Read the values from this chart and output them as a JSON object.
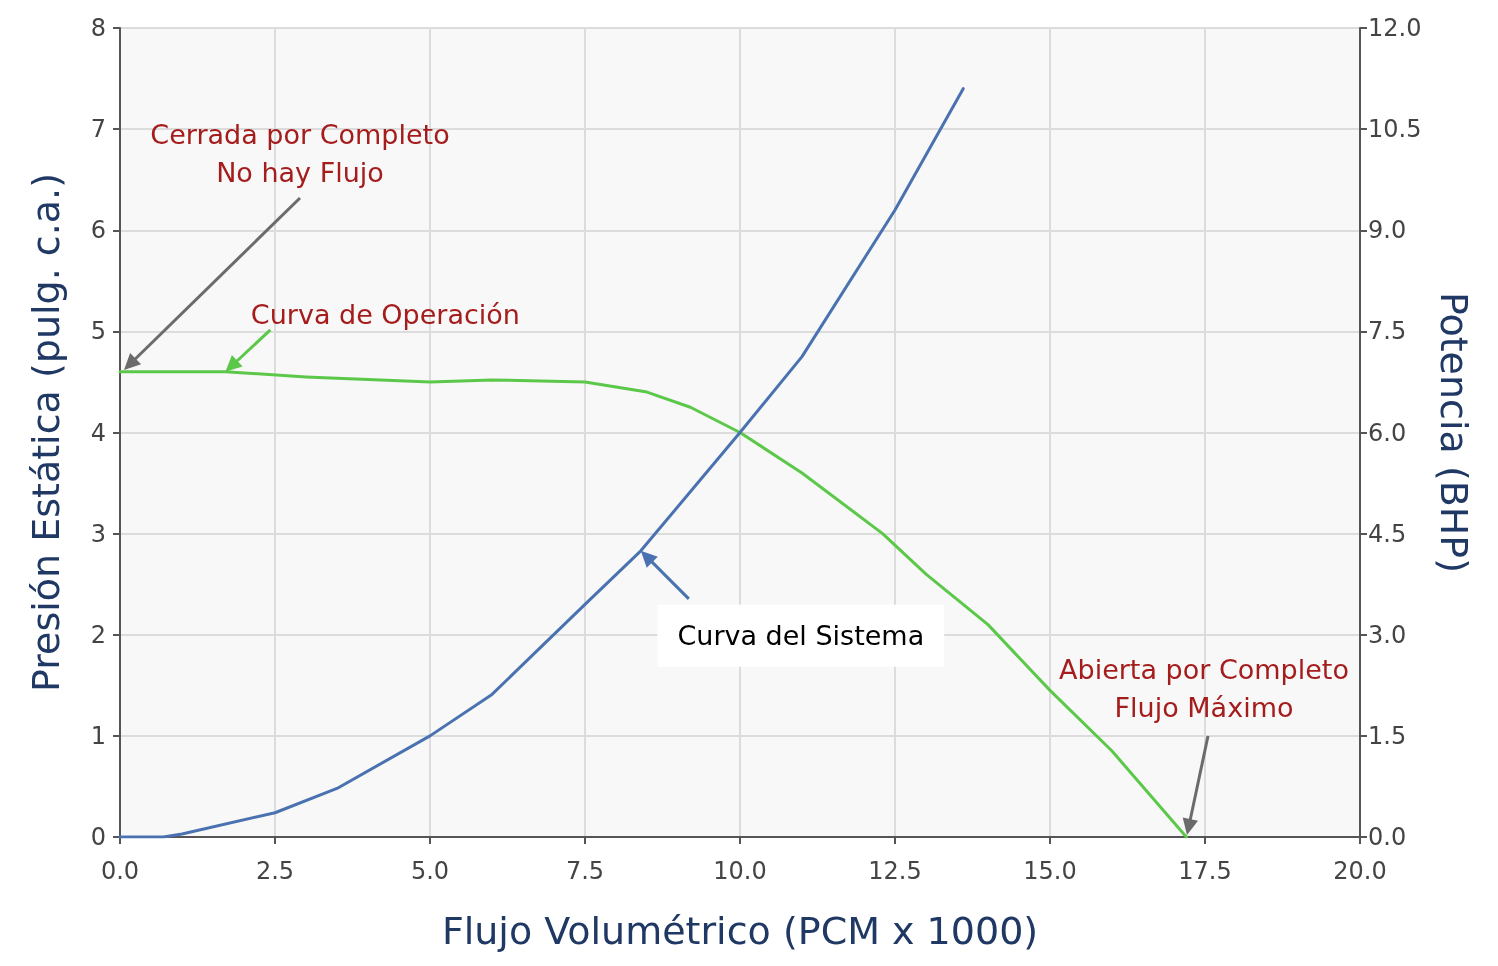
{
  "chart_data": {
    "type": "line",
    "xlabel": "Flujo Volumétrico (PCM x 1000)",
    "ylabel": "Presión Estática (pulg. c.a.)",
    "y2label": "Potencia (BHP)",
    "xlim": [
      0,
      20
    ],
    "xticks": [
      {
        "value": 0,
        "label": "0.0"
      },
      {
        "value": 2.5,
        "label": "2.5"
      },
      {
        "value": 5,
        "label": "5.0"
      },
      {
        "value": 7.5,
        "label": "7.5"
      },
      {
        "value": 10,
        "label": "10.0"
      },
      {
        "value": 12.5,
        "label": "12.5"
      },
      {
        "value": 15,
        "label": "15.0"
      },
      {
        "value": 17.5,
        "label": "17.5"
      },
      {
        "value": 20,
        "label": "20.0"
      }
    ],
    "ylim": [
      0,
      8
    ],
    "yticks": [
      0,
      1,
      2,
      3,
      4,
      5,
      6,
      7,
      8
    ],
    "y2lim": [
      0,
      12
    ],
    "y2ticks": [
      {
        "value": 0,
        "label": "0.0"
      },
      {
        "value": 1.5,
        "label": "1.5"
      },
      {
        "value": 3,
        "label": "3.0"
      },
      {
        "value": 4.5,
        "label": "4.5"
      },
      {
        "value": 6,
        "label": "6.0"
      },
      {
        "value": 7.5,
        "label": "7.5"
      },
      {
        "value": 9,
        "label": "9.0"
      },
      {
        "value": 10.5,
        "label": "10.5"
      },
      {
        "value": 12,
        "label": "12.0"
      }
    ],
    "grid": true,
    "marker": "none",
    "line_style": "solid",
    "series": [
      {
        "color": "#5cc84a",
        "x": [
          0,
          1.7,
          3,
          5,
          6,
          7.5,
          8.5,
          9.2,
          10,
          11,
          12.3,
          13,
          14,
          15,
          16,
          17.2
        ],
        "values": [
          4.6,
          4.6,
          4.55,
          4.5,
          4.52,
          4.5,
          4.4,
          4.25,
          4.0,
          3.6,
          3.0,
          2.6,
          2.1,
          1.45,
          0.85,
          0
        ]
      },
      {
        "color": "#4a72b0",
        "x": [
          0,
          0.7,
          1,
          2.5,
          3.5,
          5,
          6,
          7.5,
          8.4,
          10,
          11,
          12.5,
          13.6
        ],
        "values": [
          0,
          0,
          0.03,
          0.24,
          0.48,
          1.0,
          1.41,
          2.3,
          2.83,
          4.0,
          4.75,
          6.2,
          7.4
        ]
      }
    ],
    "annotations": [
      "Cerrada por Completo\nNo hay Flujo",
      {
        "text": "Curva de Operación",
        "x": 1.7,
        "y": 4.6
      },
      {
        "text": "Curva del Sistema",
        "x": 8.4,
        "y": 2.83
      },
      "Abierta por Completo\nFlujo Máximo"
    ]
  }
}
